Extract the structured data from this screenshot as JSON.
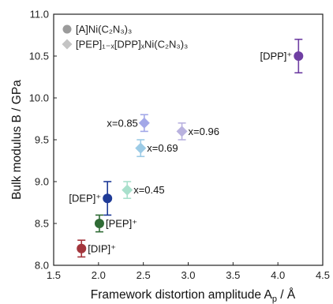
{
  "chart_data": {
    "type": "scatter",
    "xlim": [
      1.5,
      4.5
    ],
    "ylim": [
      8.0,
      11.0
    ],
    "x_ticks": [
      1.5,
      2.0,
      2.5,
      3.0,
      3.5,
      4.0,
      4.5
    ],
    "y_ticks": [
      8.0,
      8.5,
      9.0,
      9.5,
      10.0,
      10.5,
      11.0
    ],
    "x_tick_labels": [
      "1.5",
      "2.0",
      "2.5",
      "3.0",
      "3.5",
      "4.0",
      "4.5"
    ],
    "y_tick_labels": [
      "8.0",
      "8.5",
      "9.0",
      "9.5",
      "10.0",
      "10.5",
      "11.0"
    ],
    "xlabel": "Framework distortion amplitude A",
    "xlabel_sub": "p",
    "xlabel_unit": " / Å",
    "ylabel": "Bulk modulus B / GPa",
    "grid": false,
    "legend_position": "top-left",
    "legend": [
      {
        "marker": "circle",
        "color": "#9b9b9b",
        "text": "[A]Ni(C₂N₃)₃"
      },
      {
        "marker": "diamond",
        "color": "#c4c4c4",
        "text": "[PEP]₁₋ₓ[DPP]ₓNi(C₂N₃)₃"
      }
    ],
    "points": [
      {
        "label": "[DIP]⁺",
        "marker": "circle",
        "color": "#a3353c",
        "x": 1.81,
        "y": 8.2,
        "err": 0.1,
        "label_side": "right"
      },
      {
        "label": "[PEP]⁺",
        "marker": "circle",
        "color": "#2f6b35",
        "x": 2.01,
        "y": 8.5,
        "err": 0.1,
        "label_side": "right"
      },
      {
        "label": "[DEP]⁺",
        "marker": "circle",
        "color": "#1f3b97",
        "x": 2.1,
        "y": 8.8,
        "err": 0.2,
        "label_side": "left"
      },
      {
        "label": "[DPP]⁺",
        "marker": "circle",
        "color": "#6f3fa3",
        "x": 4.23,
        "y": 10.5,
        "err": 0.2,
        "label_side": "left"
      },
      {
        "label": "x=0.45",
        "marker": "diamond",
        "color": "#a9e0cc",
        "x": 2.32,
        "y": 8.9,
        "err": 0.1,
        "label_side": "right"
      },
      {
        "label": "x=0.69",
        "marker": "diamond",
        "color": "#9ccbe6",
        "x": 2.47,
        "y": 9.4,
        "err": 0.1,
        "label_side": "right"
      },
      {
        "label": "x=0.85",
        "marker": "diamond",
        "color": "#a3a8e8",
        "x": 2.51,
        "y": 9.7,
        "err": 0.1,
        "label_side": "left"
      },
      {
        "label": "x=0.96",
        "marker": "diamond",
        "color": "#b9b2df",
        "x": 2.93,
        "y": 9.6,
        "err": 0.1,
        "label_side": "right"
      }
    ]
  }
}
